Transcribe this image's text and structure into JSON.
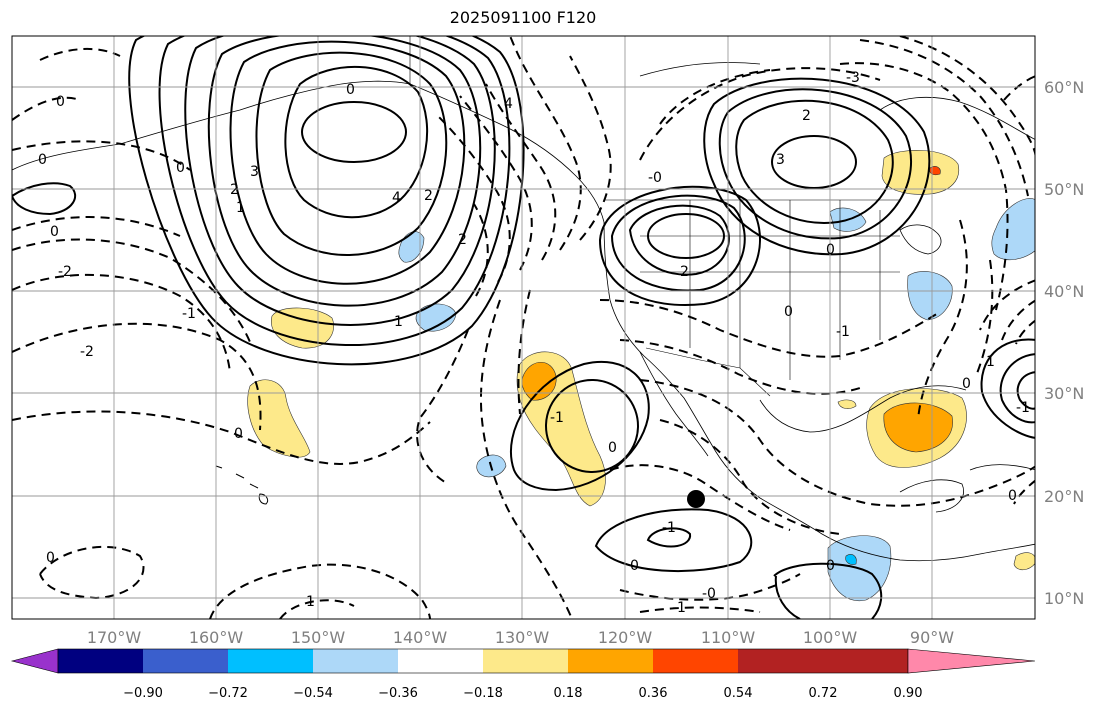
{
  "title": "2025091100 F120",
  "map": {
    "lat_labels": [
      "60°N",
      "50°N",
      "40°N",
      "30°N",
      "20°N",
      "10°N"
    ],
    "lon_labels": [
      "170°W",
      "160°W",
      "150°W",
      "140°W",
      "130°W",
      "120°W",
      "110°W",
      "100°W",
      "90°W"
    ],
    "contour_labels": {
      "a1": "0",
      "a2": "3",
      "a3": "2",
      "a4": "1",
      "a5": "4",
      "a6": "2",
      "a7": "1",
      "b1": "0",
      "b2": "0",
      "b3": "-2",
      "b4": "-1",
      "b5": "-2",
      "b6": "0",
      "c1": "-1",
      "c2": "0",
      "c3": "-1",
      "c4": "0",
      "c5": "-0",
      "c6": "-1",
      "d1": "3",
      "d2": "2",
      "d3": "0",
      "d4": "0",
      "d5": "2",
      "d6": "-0",
      "e1": "0",
      "e2": "-1",
      "e3": "0",
      "e4": "0",
      "e5": "-1",
      "e6": "-3",
      "f1": "4",
      "f2": "2",
      "f3": "0",
      "f4": "0",
      "f5": "1",
      "f6": "0",
      "f7": "1"
    },
    "marker": "black-dot",
    "colors": {
      "ocean_land_bg": "#ffffff",
      "pos_light": "#fde98a",
      "pos_mid": "#ffa500",
      "pos_high": "#ff4500",
      "neg_light": "#add8f8",
      "neg_mid": "#00bfff"
    }
  },
  "colorbar": {
    "ticks": [
      "−0.90",
      "−0.72",
      "−0.54",
      "−0.36",
      "−0.18",
      "0.18",
      "0.36",
      "0.54",
      "0.72",
      "0.90"
    ],
    "colors": [
      "#9932cc",
      "#000080",
      "#3a5fcd",
      "#00bfff",
      "#add8f8",
      "#ffffff",
      "#fde98a",
      "#ffa500",
      "#ff4500",
      "#b22222",
      "#ff88aa"
    ]
  }
}
